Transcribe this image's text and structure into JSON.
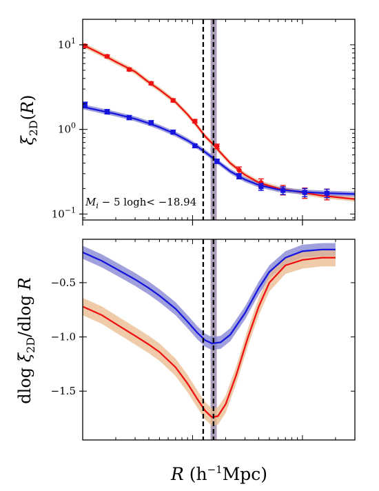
{
  "chart_data": [
    {
      "type": "line",
      "panel": "top",
      "title": "",
      "xlabel": "",
      "ylabel": "ξ2D(R)",
      "x_scale": "log",
      "y_scale": "log",
      "xlim": [
        0.1,
        30.0
      ],
      "ylim": [
        0.085,
        20.0
      ],
      "y_ticks": [
        {
          "value": 0.1,
          "label_base": "10",
          "label_exp": "−1"
        },
        {
          "value": 1.0,
          "label_base": "10",
          "label_exp": "0"
        },
        {
          "value": 10.0,
          "label_base": "10",
          "label_exp": "1"
        }
      ],
      "annotation": "Mi − 5 logh< −18.94",
      "vlines": [
        {
          "x": 1.25,
          "style": "dashed",
          "color": "#000000"
        },
        {
          "x": 1.55,
          "style": "dashed",
          "color": "#000000"
        }
      ],
      "vband": {
        "x_min": 1.46,
        "x_max": 1.66,
        "color": "#6a4f80"
      },
      "series": [
        {
          "color": "#ee1111",
          "band_color": "#e9b98c",
          "points": [
            {
              "x": 0.105,
              "y": 9.7,
              "err": 0.4
            },
            {
              "x": 0.167,
              "y": 7.3,
              "err": 0.3
            },
            {
              "x": 0.265,
              "y": 5.1,
              "err": 0.2
            },
            {
              "x": 0.42,
              "y": 3.5,
              "err": 0.15
            },
            {
              "x": 0.665,
              "y": 2.2,
              "err": 0.1
            },
            {
              "x": 1.05,
              "y": 1.25,
              "err": 0.06
            },
            {
              "x": 1.67,
              "y": 0.63,
              "err": 0.04
            },
            {
              "x": 2.65,
              "y": 0.33,
              "err": 0.03
            },
            {
              "x": 4.2,
              "y": 0.235,
              "err": 0.025
            },
            {
              "x": 6.65,
              "y": 0.193,
              "err": 0.025
            },
            {
              "x": 10.5,
              "y": 0.178,
              "err": 0.025
            },
            {
              "x": 16.7,
              "y": 0.172,
              "err": 0.025
            }
          ],
          "model": [
            {
              "x": 0.1,
              "y": 10.0
            },
            {
              "x": 0.15,
              "y": 7.7
            },
            {
              "x": 0.2,
              "y": 6.3
            },
            {
              "x": 0.3,
              "y": 4.8
            },
            {
              "x": 0.4,
              "y": 3.6
            },
            {
              "x": 0.5,
              "y": 2.95
            },
            {
              "x": 0.7,
              "y": 2.1
            },
            {
              "x": 0.9,
              "y": 1.5
            },
            {
              "x": 1.1,
              "y": 1.1
            },
            {
              "x": 1.3,
              "y": 0.83
            },
            {
              "x": 1.5,
              "y": 0.69
            },
            {
              "x": 1.8,
              "y": 0.53
            },
            {
              "x": 2.2,
              "y": 0.4
            },
            {
              "x": 3.0,
              "y": 0.29
            },
            {
              "x": 4.0,
              "y": 0.235
            },
            {
              "x": 6.0,
              "y": 0.2
            },
            {
              "x": 10.0,
              "y": 0.18
            },
            {
              "x": 15.0,
              "y": 0.165
            },
            {
              "x": 30.0,
              "y": 0.15
            }
          ]
        },
        {
          "color": "#1515dd",
          "band_color": "#8080d0",
          "points": [
            {
              "x": 0.105,
              "y": 1.95,
              "err": 0.15
            },
            {
              "x": 0.167,
              "y": 1.62,
              "err": 0.1
            },
            {
              "x": 0.265,
              "y": 1.38,
              "err": 0.08
            },
            {
              "x": 0.42,
              "y": 1.2,
              "err": 0.07
            },
            {
              "x": 0.665,
              "y": 0.93,
              "err": 0.05
            },
            {
              "x": 1.05,
              "y": 0.64,
              "err": 0.03
            },
            {
              "x": 1.67,
              "y": 0.42,
              "err": 0.025
            },
            {
              "x": 2.65,
              "y": 0.28,
              "err": 0.02
            },
            {
              "x": 4.2,
              "y": 0.21,
              "err": 0.02
            },
            {
              "x": 6.65,
              "y": 0.19,
              "err": 0.02
            },
            {
              "x": 10.5,
              "y": 0.18,
              "err": 0.02
            },
            {
              "x": 16.7,
              "y": 0.176,
              "err": 0.02
            }
          ],
          "model": [
            {
              "x": 0.1,
              "y": 1.85
            },
            {
              "x": 0.15,
              "y": 1.65
            },
            {
              "x": 0.2,
              "y": 1.52
            },
            {
              "x": 0.3,
              "y": 1.33
            },
            {
              "x": 0.4,
              "y": 1.18
            },
            {
              "x": 0.5,
              "y": 1.06
            },
            {
              "x": 0.7,
              "y": 0.88
            },
            {
              "x": 0.9,
              "y": 0.74
            },
            {
              "x": 1.1,
              "y": 0.63
            },
            {
              "x": 1.3,
              "y": 0.54
            },
            {
              "x": 1.5,
              "y": 0.47
            },
            {
              "x": 1.8,
              "y": 0.39
            },
            {
              "x": 2.2,
              "y": 0.32
            },
            {
              "x": 3.0,
              "y": 0.255
            },
            {
              "x": 4.0,
              "y": 0.22
            },
            {
              "x": 6.0,
              "y": 0.195
            },
            {
              "x": 10.0,
              "y": 0.182
            },
            {
              "x": 15.0,
              "y": 0.177
            },
            {
              "x": 30.0,
              "y": 0.172
            }
          ]
        }
      ]
    },
    {
      "type": "line",
      "panel": "bottom",
      "title": "",
      "xlabel": "R (h−1Mpc)",
      "ylabel": "dlog ξ2D/dlog R",
      "x_scale": "log",
      "y_scale": "linear",
      "xlim": [
        0.1,
        30.0
      ],
      "ylim": [
        -1.95,
        -0.1
      ],
      "y_ticks": [
        {
          "value": -0.5,
          "label": "−0.5"
        },
        {
          "value": -1.0,
          "label": "−1.0"
        },
        {
          "value": -1.5,
          "label": "−1.5"
        }
      ],
      "vlines": [
        {
          "x": 1.25,
          "style": "dashed",
          "color": "#000000"
        },
        {
          "x": 1.55,
          "style": "dashed",
          "color": "#000000"
        }
      ],
      "vband": {
        "x_min": 1.46,
        "x_max": 1.66,
        "color": "#6a4f80"
      },
      "series": [
        {
          "color": "#1515dd",
          "band_color": "#8080d0",
          "band_width": 0.06,
          "model": [
            {
              "x": 0.1,
              "y": -0.22
            },
            {
              "x": 0.15,
              "y": -0.3
            },
            {
              "x": 0.2,
              "y": -0.37
            },
            {
              "x": 0.3,
              "y": -0.47
            },
            {
              "x": 0.4,
              "y": -0.55
            },
            {
              "x": 0.5,
              "y": -0.62
            },
            {
              "x": 0.7,
              "y": -0.74
            },
            {
              "x": 0.9,
              "y": -0.86
            },
            {
              "x": 1.1,
              "y": -0.96
            },
            {
              "x": 1.3,
              "y": -1.03
            },
            {
              "x": 1.5,
              "y": -1.06
            },
            {
              "x": 1.8,
              "y": -1.05
            },
            {
              "x": 2.2,
              "y": -0.98
            },
            {
              "x": 3.0,
              "y": -0.78
            },
            {
              "x": 4.0,
              "y": -0.55
            },
            {
              "x": 5.0,
              "y": -0.4
            },
            {
              "x": 7.0,
              "y": -0.27
            },
            {
              "x": 10.0,
              "y": -0.21
            },
            {
              "x": 15.0,
              "y": -0.195
            },
            {
              "x": 20.0,
              "y": -0.195
            }
          ]
        },
        {
          "color": "#ee1111",
          "band_color": "#e9b98c",
          "band_width": 0.08,
          "model": [
            {
              "x": 0.1,
              "y": -0.72
            },
            {
              "x": 0.15,
              "y": -0.8
            },
            {
              "x": 0.2,
              "y": -0.88
            },
            {
              "x": 0.3,
              "y": -0.99
            },
            {
              "x": 0.4,
              "y": -1.07
            },
            {
              "x": 0.5,
              "y": -1.14
            },
            {
              "x": 0.7,
              "y": -1.28
            },
            {
              "x": 0.9,
              "y": -1.43
            },
            {
              "x": 1.1,
              "y": -1.57
            },
            {
              "x": 1.3,
              "y": -1.68
            },
            {
              "x": 1.5,
              "y": -1.74
            },
            {
              "x": 1.7,
              "y": -1.73
            },
            {
              "x": 2.0,
              "y": -1.62
            },
            {
              "x": 2.5,
              "y": -1.35
            },
            {
              "x": 3.2,
              "y": -1.0
            },
            {
              "x": 4.0,
              "y": -0.72
            },
            {
              "x": 5.0,
              "y": -0.5
            },
            {
              "x": 7.0,
              "y": -0.34
            },
            {
              "x": 10.0,
              "y": -0.29
            },
            {
              "x": 15.0,
              "y": -0.27
            },
            {
              "x": 20.0,
              "y": -0.27
            }
          ]
        }
      ]
    }
  ]
}
